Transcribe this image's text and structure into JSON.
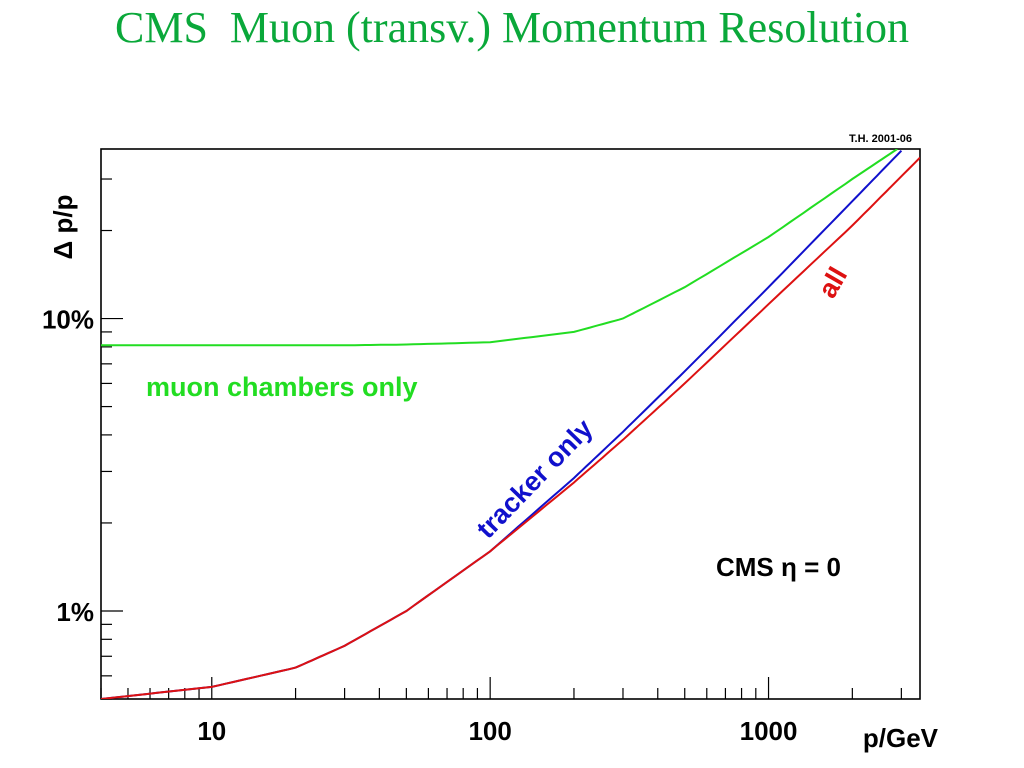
{
  "title": "CMS  Muon (transv.) Momentum Resolution",
  "credit": "T.H. 2001-06",
  "status_text": "CMS  η = 0",
  "colors": {
    "muon": "#22dd22",
    "tracker": "#1010cc",
    "all": "#dd1111",
    "title": "#0aa83a"
  },
  "chart_data": {
    "type": "line",
    "title": "CMS  Muon (transv.) Momentum Resolution",
    "xlabel": "p/GeV",
    "ylabel": "Δ p/p",
    "xscale": "log",
    "yscale": "log",
    "xlim": [
      4,
      3500
    ],
    "ylim": [
      0.5,
      38
    ],
    "x_ticks": [
      {
        "value": 10,
        "label": "10"
      },
      {
        "value": 100,
        "label": "100"
      },
      {
        "value": 1000,
        "label": "1000"
      }
    ],
    "y_ticks": [
      {
        "value": 1,
        "label": "1%"
      },
      {
        "value": 10,
        "label": "10%"
      }
    ],
    "grid": false,
    "series": [
      {
        "name": "muon chambers only",
        "x": [
          4,
          10,
          30,
          50,
          100,
          200,
          300,
          500,
          1000,
          2000,
          2900
        ],
        "y": [
          8.1,
          8.1,
          8.1,
          8.15,
          8.3,
          9.0,
          10.0,
          12.8,
          19.0,
          30.0,
          38.0
        ]
      },
      {
        "name": "tracker only",
        "x": [
          4,
          10,
          20,
          30,
          50,
          100,
          200,
          300,
          500,
          1000,
          2000,
          3000
        ],
        "y": [
          0.5,
          0.55,
          0.64,
          0.76,
          1.0,
          1.6,
          2.85,
          4.1,
          6.6,
          12.8,
          25.2,
          37.5
        ]
      },
      {
        "name": "all",
        "x": [
          4,
          10,
          20,
          30,
          50,
          100,
          200,
          300,
          500,
          1000,
          2000,
          3500
        ],
        "y": [
          0.5,
          0.55,
          0.64,
          0.76,
          1.0,
          1.6,
          2.75,
          3.85,
          6.0,
          11.2,
          20.8,
          35.5
        ]
      }
    ]
  }
}
